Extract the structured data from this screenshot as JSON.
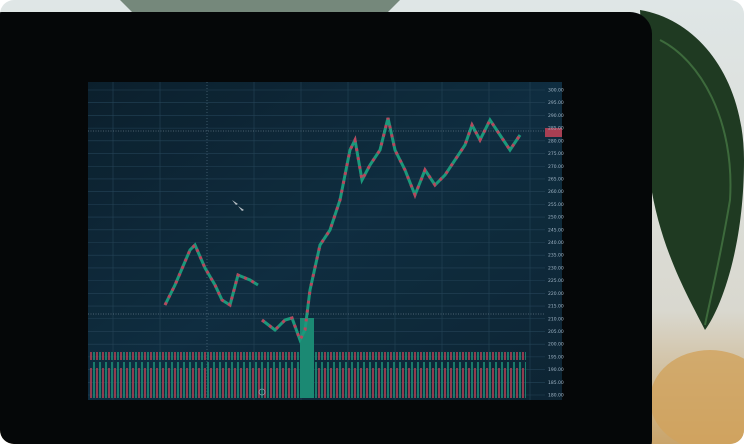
{
  "screen": {
    "yticks": [
      {
        "value": 300,
        "label": "300.00"
      },
      {
        "value": 295,
        "label": "295.00"
      },
      {
        "value": 290,
        "label": "290.00"
      },
      {
        "value": 285,
        "label": "285.00"
      },
      {
        "value": 280,
        "label": "280.00"
      },
      {
        "value": 275,
        "label": "275.00"
      },
      {
        "value": 270,
        "label": "270.00"
      },
      {
        "value": 265,
        "label": "265.00"
      },
      {
        "value": 260,
        "label": "260.00"
      },
      {
        "value": 255,
        "label": "255.00"
      },
      {
        "value": 250,
        "label": "250.00"
      },
      {
        "value": 245,
        "label": "245.00"
      },
      {
        "value": 240,
        "label": "240.00"
      },
      {
        "value": 235,
        "label": "235.00"
      },
      {
        "value": 230,
        "label": "230.00"
      },
      {
        "value": 225,
        "label": "225.00"
      },
      {
        "value": 220,
        "label": "220.00"
      },
      {
        "value": 215,
        "label": "215.00"
      },
      {
        "value": 210,
        "label": "210.00"
      },
      {
        "value": 205,
        "label": "205.00"
      },
      {
        "value": 200,
        "label": "200.00"
      },
      {
        "value": 195,
        "label": "195.00"
      },
      {
        "value": 190,
        "label": "190.00"
      },
      {
        "value": 185,
        "label": "185.00"
      },
      {
        "value": 180,
        "label": "180.00"
      }
    ],
    "ylim": [
      180,
      300
    ]
  }
}
